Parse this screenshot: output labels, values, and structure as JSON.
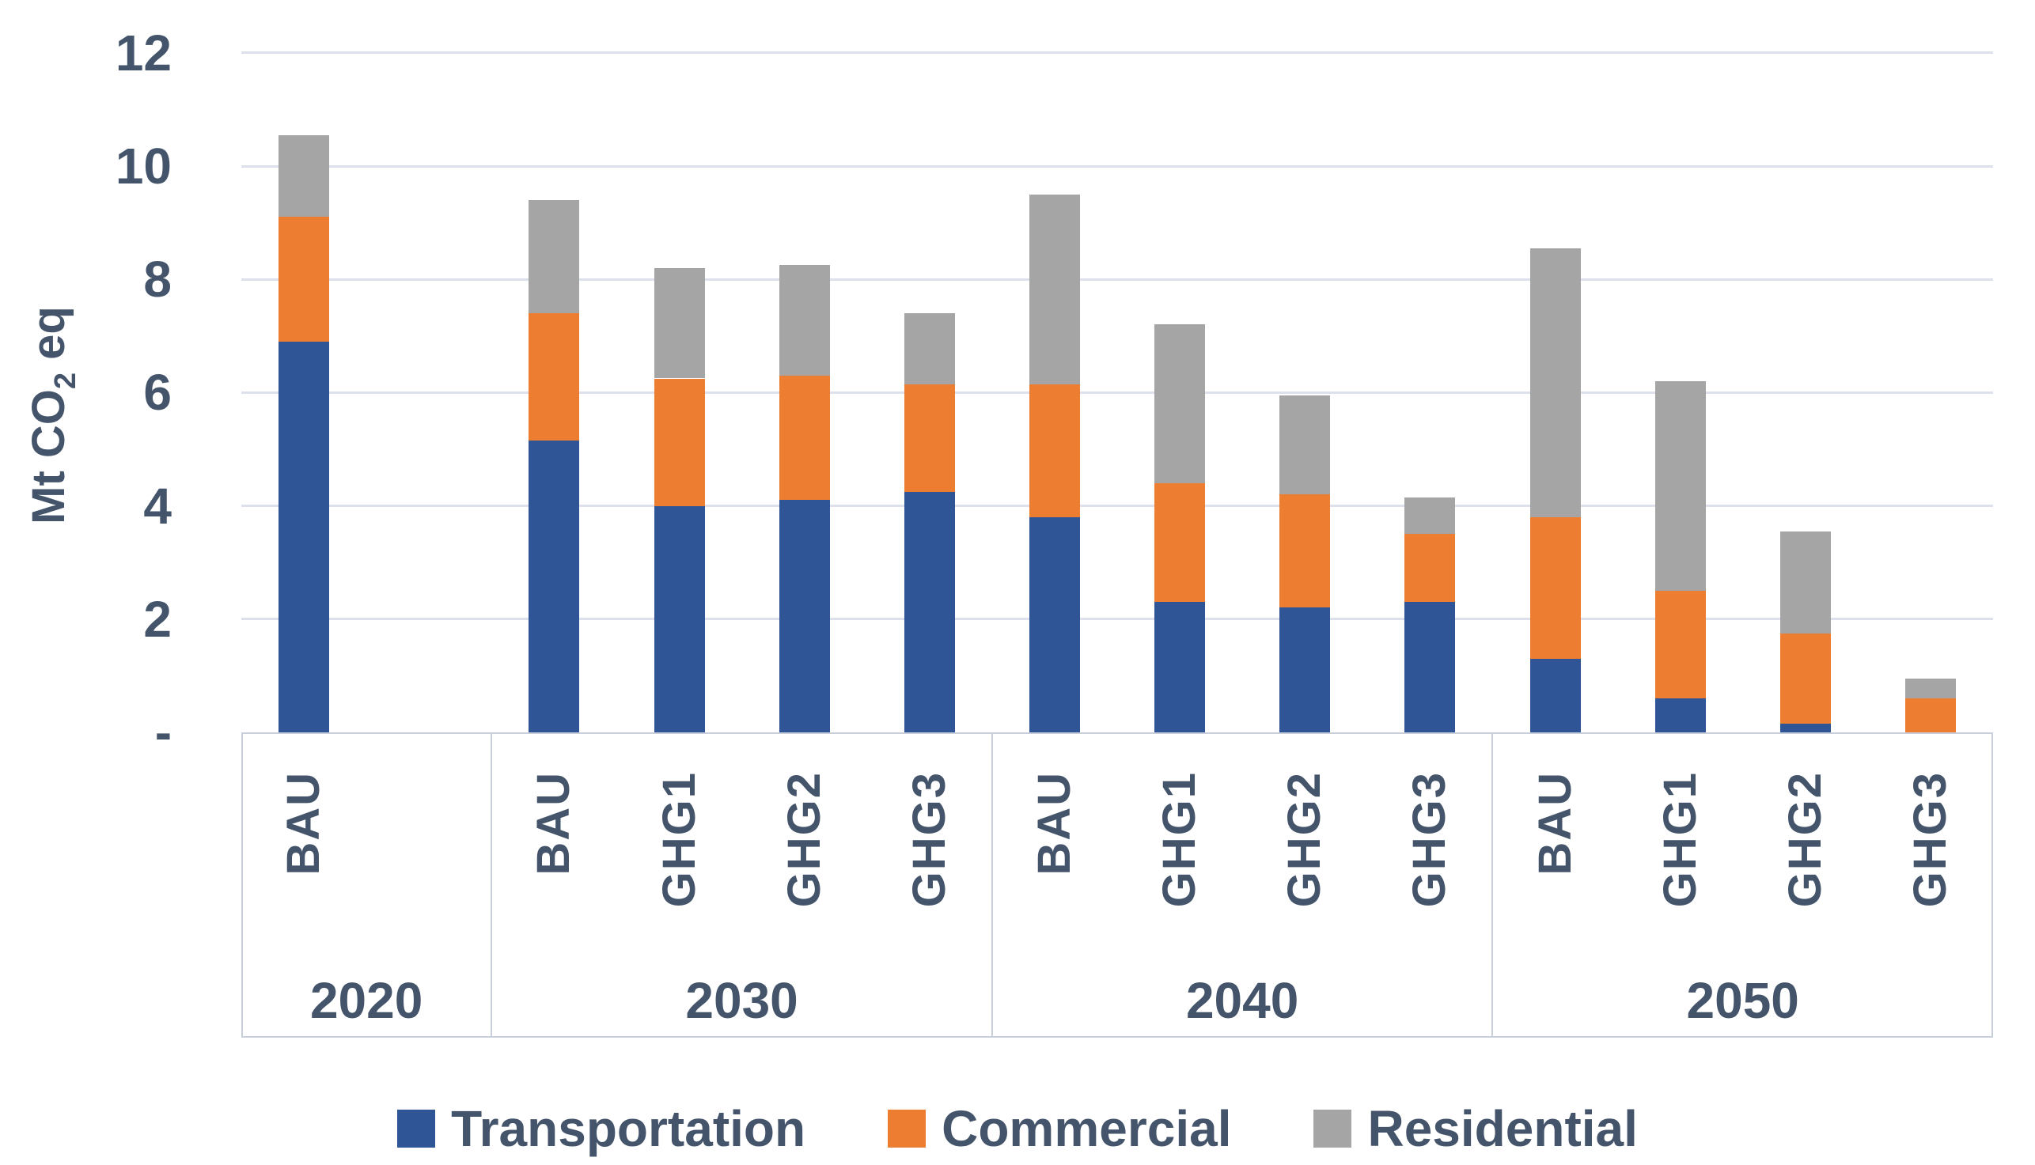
{
  "y_axis": {
    "title_main": "Mt CO",
    "title_sub": "2",
    "title_rest": " eq",
    "ticks": [
      "12",
      "10",
      "8",
      "6",
      "4",
      "2",
      "-"
    ],
    "tick_values": [
      12,
      10,
      8,
      6,
      4,
      2,
      0
    ]
  },
  "x_axis": {
    "groups": [
      {
        "year": "2020",
        "scenarios": [
          "BAU"
        ],
        "empty_slots": 1
      },
      {
        "year": "2030",
        "scenarios": [
          "BAU",
          "GHG1",
          "GHG2",
          "GHG3"
        ],
        "empty_slots": 0
      },
      {
        "year": "2040",
        "scenarios": [
          "BAU",
          "GHG1",
          "GHG2",
          "GHG3"
        ],
        "empty_slots": 0
      },
      {
        "year": "2050",
        "scenarios": [
          "BAU",
          "GHG1",
          "GHG2",
          "GHG3"
        ],
        "empty_slots": 0
      }
    ]
  },
  "legend": {
    "items": [
      {
        "label": "Transportation",
        "color": "#2F5597"
      },
      {
        "label": "Commercial",
        "color": "#ED7D31"
      },
      {
        "label": "Residential",
        "color": "#A5A5A5"
      }
    ]
  },
  "colors": {
    "text": "#44546A",
    "gridline": "#DCE1EB",
    "axis_box": "#C9CFDA",
    "background": "#FFFFFF"
  },
  "chart_data": {
    "type": "bar",
    "stacked": true,
    "title": "",
    "xlabel": "",
    "ylabel": "Mt CO2 eq",
    "ylim": [
      0,
      12
    ],
    "gridline_values": [
      2,
      4,
      6,
      8,
      10,
      12
    ],
    "grid": true,
    "legend_position": "bottom",
    "groups": [
      "2020",
      "2030",
      "2040",
      "2050"
    ],
    "categories": [
      "2020 BAU",
      "2030 BAU",
      "2030 GHG1",
      "2030 GHG2",
      "2030 GHG3",
      "2040 BAU",
      "2040 GHG1",
      "2040 GHG2",
      "2040 GHG3",
      "2050 BAU",
      "2050 GHG1",
      "2050 GHG2",
      "2050 GHG3"
    ],
    "series": [
      {
        "name": "Transportation",
        "color": "#2F5597",
        "values": [
          6.9,
          5.15,
          4.0,
          4.1,
          4.25,
          3.8,
          2.3,
          2.2,
          2.3,
          1.3,
          0.6,
          0.15,
          0.0
        ]
      },
      {
        "name": "Commercial",
        "color": "#ED7D31",
        "values": [
          2.2,
          2.25,
          2.25,
          2.2,
          1.9,
          2.35,
          2.1,
          2.0,
          1.2,
          2.5,
          1.9,
          1.6,
          0.6
        ]
      },
      {
        "name": "Residential",
        "color": "#A5A5A5",
        "values": [
          1.45,
          2.0,
          1.95,
          1.95,
          1.25,
          3.35,
          2.8,
          1.75,
          0.65,
          4.75,
          3.7,
          1.8,
          0.35
        ]
      }
    ]
  }
}
